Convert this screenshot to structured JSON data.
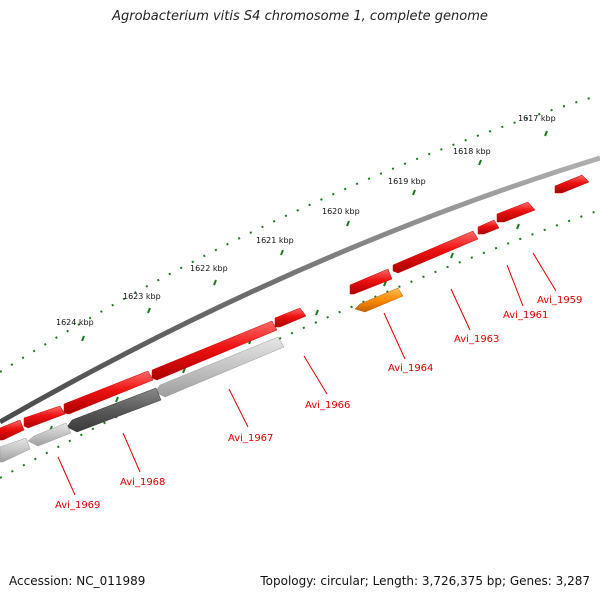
{
  "title": "Agrobacterium vitis S4 chromosome 1, complete genome",
  "accession": "Accession: NC_011989",
  "summary": "Topology: circular; Length: 3,726,375 bp; Genes: 3,287",
  "colors": {
    "backbone": "#7a7a7a",
    "tick": "#1a7a1a",
    "gene_red": "#ee1111",
    "gene_orange": "#ff8c00",
    "gene_dark_gray": "#5a5a5a",
    "gene_light_gray": "#bdbdbd",
    "label_red": "#dd0000"
  },
  "ticks": [
    {
      "label": "1617 kbp"
    },
    {
      "label": "1618 kbp"
    },
    {
      "label": "1619 kbp"
    },
    {
      "label": "1620 kbp"
    },
    {
      "label": "1621 kbp"
    },
    {
      "label": "1622 kbp"
    },
    {
      "label": "1623 kbp"
    },
    {
      "label": "1624 kbp"
    }
  ],
  "gene_labels": [
    {
      "name": "Avi_1959"
    },
    {
      "name": "Avi_1961"
    },
    {
      "name": "Avi_1963"
    },
    {
      "name": "Avi_1964"
    },
    {
      "name": "Avi_1966"
    },
    {
      "name": "Avi_1967"
    },
    {
      "name": "Avi_1968"
    },
    {
      "name": "Avi_1969"
    }
  ]
}
